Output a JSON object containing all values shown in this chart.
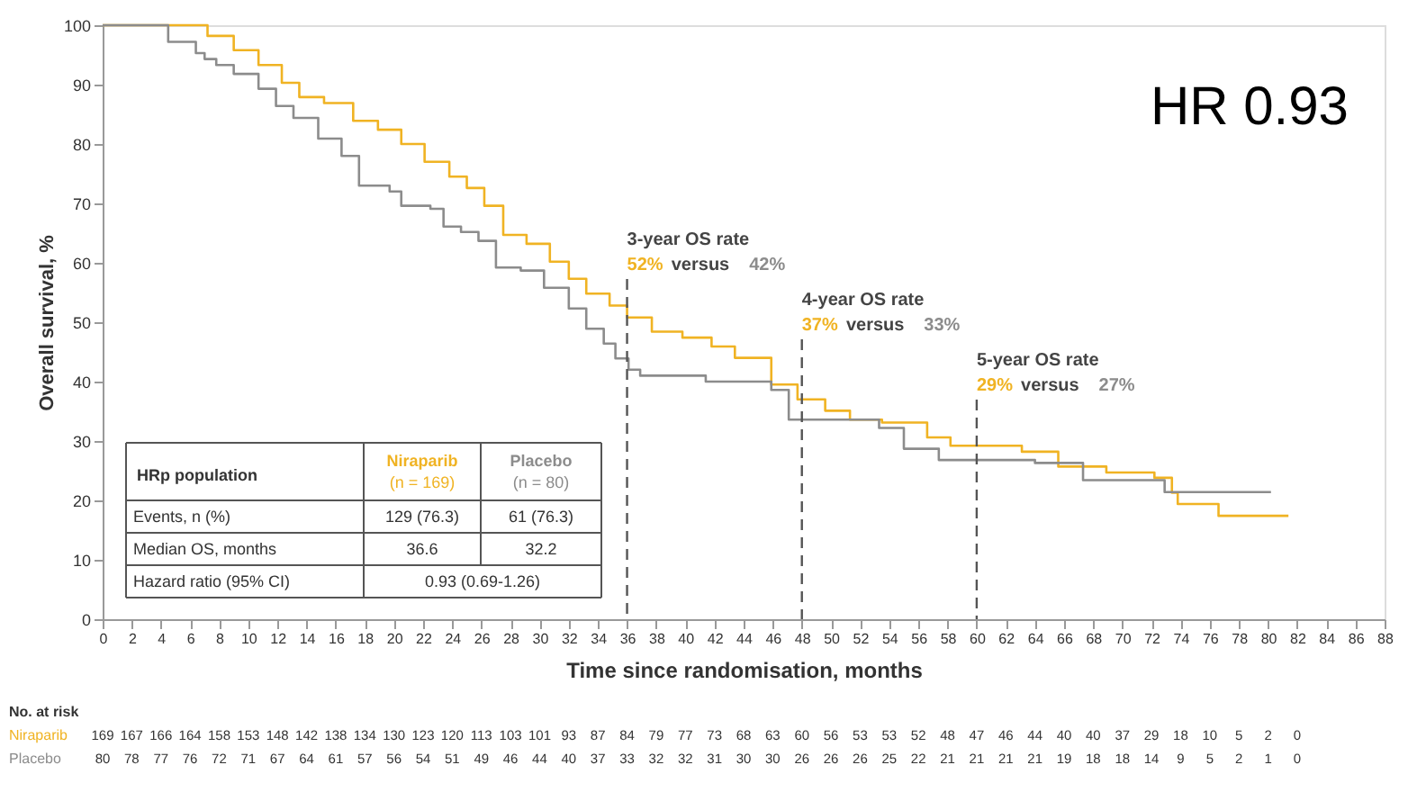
{
  "chart_data": {
    "type": "step",
    "xlabel": "Time since randomisation, months",
    "ylabel": "Overall survival, %",
    "xlim": [
      0,
      88
    ],
    "ylim": [
      0,
      100
    ],
    "xticks": [
      0,
      2,
      4,
      6,
      8,
      10,
      12,
      14,
      16,
      18,
      20,
      22,
      24,
      26,
      28,
      30,
      32,
      34,
      36,
      38,
      40,
      42,
      44,
      46,
      48,
      50,
      52,
      54,
      56,
      58,
      60,
      62,
      64,
      66,
      68,
      70,
      72,
      74,
      76,
      78,
      80,
      82,
      84,
      86,
      88
    ],
    "yticks": [
      0,
      10,
      20,
      30,
      40,
      50,
      60,
      70,
      80,
      90,
      100
    ],
    "grid": false,
    "marker": "none",
    "line_style": "solid",
    "series": [
      {
        "name": "Niraparib",
        "color": "#f0b323",
        "x": [
          0,
          5.7,
          7.2,
          9,
          10.7,
          12.3,
          13.5,
          15.2,
          17.2,
          18.9,
          20.5,
          22.1,
          23.8,
          25,
          26.2,
          27.5,
          29.1,
          30.7,
          32,
          33.2,
          34.8,
          36,
          37.7,
          39.8,
          41.8,
          43.4,
          45.9,
          47.7,
          49.6,
          51.3,
          53.5,
          56.6,
          58.2,
          63.1,
          65.6,
          68.9,
          72.2,
          73.4,
          73.8,
          76.6,
          81.4
        ],
        "values": [
          100,
          100,
          98.2,
          95.8,
          93.3,
          90.3,
          87.9,
          86.9,
          83.9,
          82.4,
          80,
          77,
          74.5,
          72.6,
          69.6,
          64.7,
          63.2,
          60.2,
          57.3,
          54.8,
          52.8,
          50.8,
          48.4,
          47.4,
          45.9,
          44,
          39.5,
          37,
          35.1,
          33.6,
          33.1,
          30.6,
          29.2,
          28.2,
          25.7,
          24.7,
          23.8,
          21.3,
          19.4,
          17.4,
          17.4
        ]
      },
      {
        "name": "Placebo",
        "color": "#8c8c8c",
        "x": [
          0,
          3.3,
          4.5,
          6.4,
          7,
          7.8,
          9,
          10.7,
          11.9,
          13.1,
          14.8,
          16.4,
          17.6,
          19.7,
          20.5,
          22.5,
          23.4,
          24.6,
          25.8,
          27,
          28.7,
          30.3,
          32,
          33.2,
          34.4,
          35.2,
          36.1,
          36.9,
          41.4,
          45.9,
          47.1,
          53.3,
          55,
          57.4,
          64,
          67.3,
          72.9,
          80.2
        ],
        "values": [
          100,
          100,
          97.2,
          95.3,
          94.3,
          93.3,
          91.8,
          89.3,
          86.4,
          84.4,
          80.9,
          78,
          73,
          72,
          69.6,
          69.1,
          66.1,
          65.2,
          63.7,
          59.2,
          58.7,
          55.8,
          52.3,
          48.9,
          46.4,
          43.9,
          42,
          41,
          40,
          38.6,
          33.6,
          32.2,
          28.7,
          26.8,
          26.3,
          23.4,
          21.4,
          21.4
        ]
      }
    ],
    "ref_lines": [
      {
        "axis": "x",
        "value": 36,
        "label": "3-year OS rate",
        "color": "#555555",
        "line_style": "dashed"
      },
      {
        "axis": "x",
        "value": 48,
        "label": "4-year OS rate",
        "color": "#555555",
        "line_style": "dashed"
      },
      {
        "axis": "x",
        "value": 60,
        "label": "5-year OS rate",
        "color": "#555555",
        "line_style": "dashed"
      }
    ],
    "annotations": [
      "HR 0.93",
      "52%",
      "versus",
      "42%",
      "37%",
      "versus",
      "33%",
      "29%",
      "versus",
      "27%",
      "HRp population",
      "(n = 169)",
      "(n = 80)",
      "Events, n (%)",
      "129 (76.3)",
      "61 (76.3)",
      "Median OS, months",
      "36.6",
      "32.2",
      "Hazard ratio (95% CI)",
      "0.93 (0.69-1.26)",
      "No. at risk",
      "169 167 166 164 158 153 148 142 138 134 130 123 120 113 103 101 93 87 84 79 77 73 68 63 60 56 53 53 52 48 47 46 44 40 40 37 29 18 10 5 2 0",
      "80 78 77 76 72 71 67 64 61 57 56 54 51 49 46 44 40 37 33 32 32 31 30 30 26 26 26 25 22 21 21 21 21 19 18 18 14 9 5 2 1 0"
    ]
  }
}
